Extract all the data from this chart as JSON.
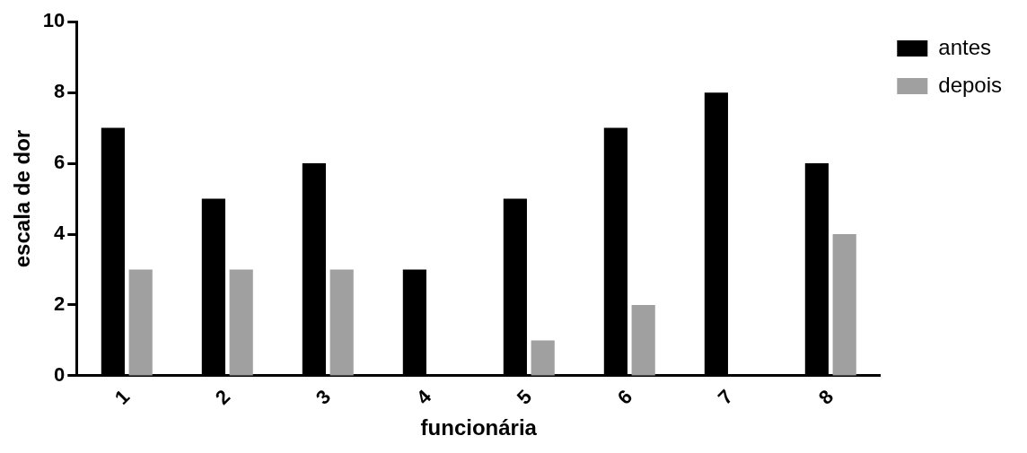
{
  "chart_data": {
    "type": "bar",
    "xlabel": "funcionária",
    "ylabel": "escala de dor",
    "categories": [
      "1",
      "2",
      "3",
      "4",
      "5",
      "6",
      "7",
      "8"
    ],
    "series": [
      {
        "name": "antes",
        "color": "#000000",
        "values": [
          7,
          5,
          6,
          3,
          5,
          7,
          8,
          6
        ]
      },
      {
        "name": "depois",
        "color": "#a0a0a0",
        "values": [
          3,
          3,
          3,
          0,
          1,
          2,
          0,
          4
        ]
      }
    ],
    "ylim": [
      0,
      10
    ],
    "yticks": [
      0,
      2,
      4,
      6,
      8,
      10
    ],
    "grid": false,
    "legend": "top right"
  }
}
